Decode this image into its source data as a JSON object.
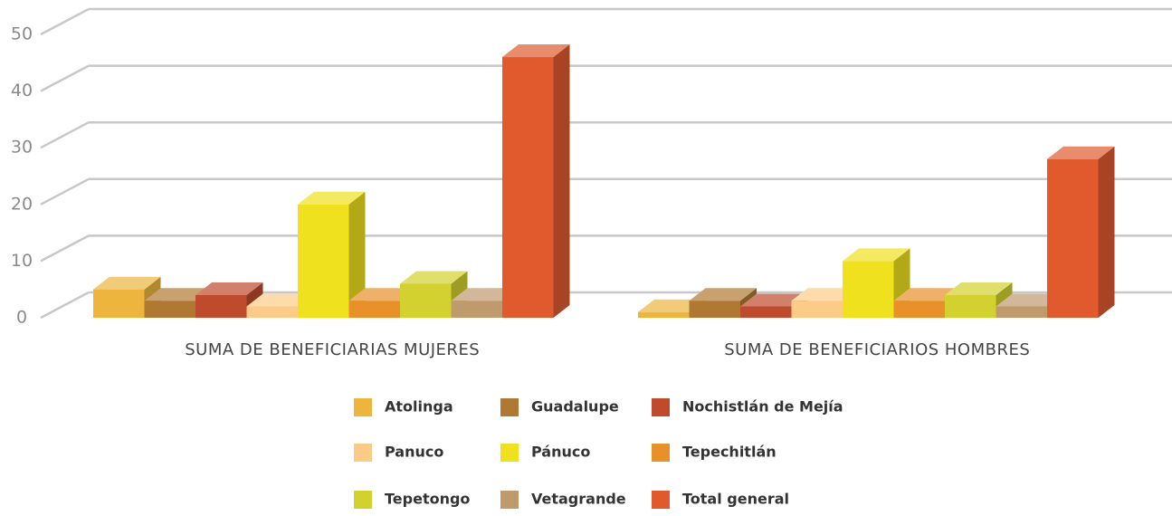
{
  "chart_data": {
    "type": "bar3d",
    "categories": [
      "SUMA DE  BENEFICIARIAS MUJERES",
      "SUMA DE  BENEFICIARIOS HOMBRES"
    ],
    "series": [
      {
        "name": "Atolinga",
        "color": "#edb53e",
        "values": [
          5,
          1
        ]
      },
      {
        "name": "Guadalupe",
        "color": "#b07832",
        "values": [
          3,
          3
        ]
      },
      {
        "name": "Nochistlán de Mejía",
        "color": "#bf4a2c",
        "values": [
          4,
          2
        ]
      },
      {
        "name": "Panuco",
        "color": "#fccb87",
        "values": [
          2,
          3
        ]
      },
      {
        "name": "Pánuco",
        "color": "#efe11e",
        "values": [
          20,
          10
        ]
      },
      {
        "name": "Tepechitlán",
        "color": "#e8902a",
        "values": [
          3,
          3
        ]
      },
      {
        "name": "Tepetongo",
        "color": "#d2d12f",
        "values": [
          6,
          4
        ]
      },
      {
        "name": "Vetagrande",
        "color": "#be9a6c",
        "values": [
          3,
          2
        ]
      },
      {
        "name": "Total general",
        "color": "#e05a2e",
        "values": [
          46,
          28
        ]
      }
    ],
    "ylim": [
      0,
      50
    ],
    "yticks": [
      0,
      10,
      20,
      30,
      40,
      50
    ],
    "grid": true
  }
}
